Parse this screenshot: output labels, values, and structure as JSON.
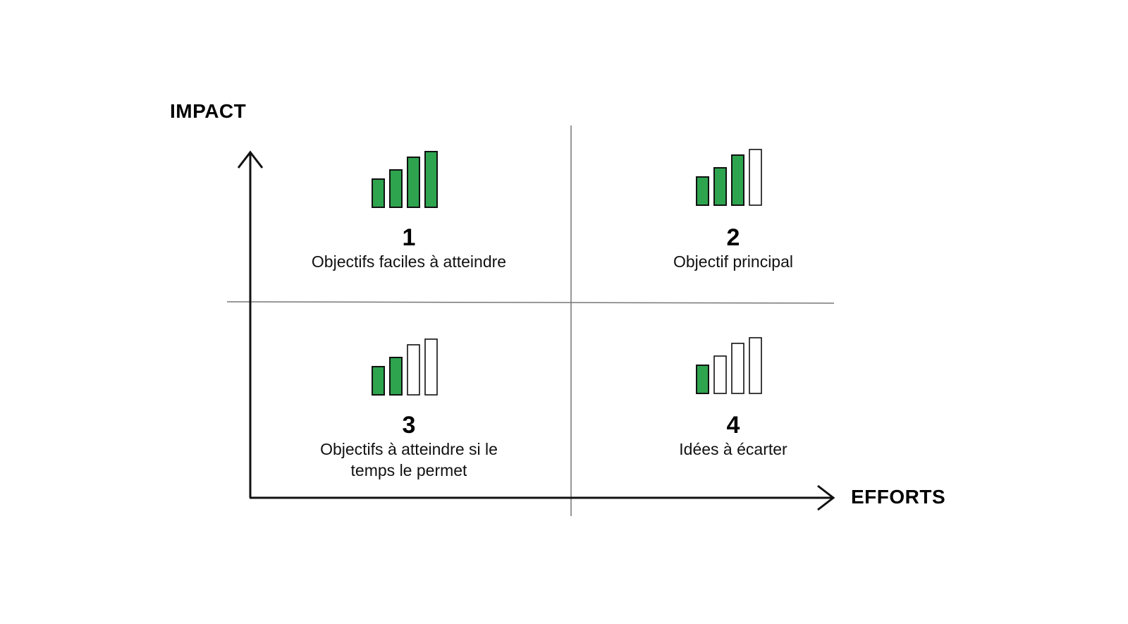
{
  "axes": {
    "y_label": "IMPACT",
    "x_label": "EFFORTS"
  },
  "colors": {
    "filled_bar": "#2ea44f",
    "bar_outline": "#111111",
    "axis": "#111111",
    "grid": "#777777"
  },
  "quadrants": [
    {
      "number": "1",
      "label": "Objectifs faciles à atteindre",
      "filled_bars": 4,
      "total_bars": 4
    },
    {
      "number": "2",
      "label": "Objectif principal",
      "filled_bars": 3,
      "total_bars": 4
    },
    {
      "number": "3",
      "label": "Objectifs à atteindre si le temps le permet",
      "filled_bars": 2,
      "total_bars": 4
    },
    {
      "number": "4",
      "label": "Idées à écarter",
      "filled_bars": 1,
      "total_bars": 4
    }
  ]
}
